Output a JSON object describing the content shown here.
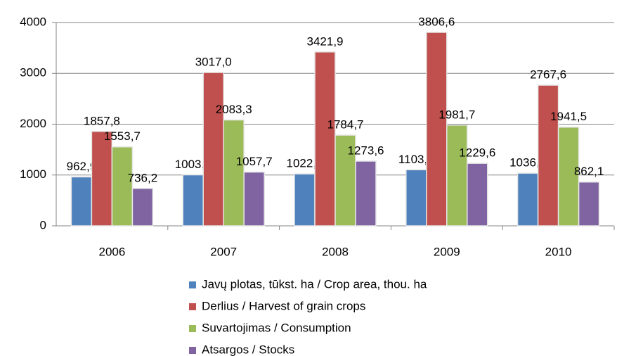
{
  "chart_data": {
    "type": "bar",
    "categories": [
      "2006",
      "2007",
      "2008",
      "2009",
      "2010"
    ],
    "series": [
      {
        "name": "Javų plotas, tūkst. ha / Crop area, thou. ha",
        "color": "#4f81bd",
        "values": [
          962.9,
          1003.3,
          1022.0,
          1103.5,
          1036.2
        ],
        "value_labels": [
          "962,9",
          "1003,3",
          "1022,0",
          "1103,5",
          "1036,2"
        ]
      },
      {
        "name": "Derlius / Harvest of grain crops",
        "color": "#c0504d",
        "values": [
          1857.8,
          3017.0,
          3421.9,
          3806.6,
          2767.6
        ],
        "value_labels": [
          "1857,8",
          "3017,0",
          "3421,9",
          "3806,6",
          "2767,6"
        ]
      },
      {
        "name": "Suvartojimas  / Consumption",
        "color": "#9bbb59",
        "values": [
          1553.7,
          2083.3,
          1784.7,
          1981.7,
          1941.5
        ],
        "value_labels": [
          "1553,7",
          "2083,3",
          "1784,7",
          "1981,7",
          "1941,5"
        ]
      },
      {
        "name": "Atsargos / Stocks",
        "color": "#8064a2",
        "values": [
          736.2,
          1057.7,
          1273.6,
          1229.6,
          862.1
        ],
        "value_labels": [
          "736,2",
          "1057,7",
          "1273,6",
          "1229,6",
          "862,1"
        ]
      }
    ],
    "ylim": [
      0,
      4000
    ],
    "yticks": [
      0,
      1000,
      2000,
      3000,
      4000
    ],
    "grid": true
  }
}
